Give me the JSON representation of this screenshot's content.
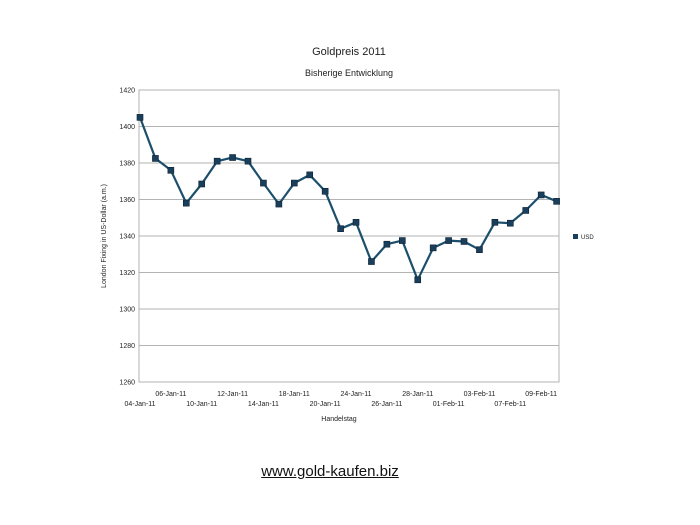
{
  "chart_data": {
    "type": "line",
    "title": "Goldpreis 2011",
    "subtitle": "Bisherige Entwicklung",
    "xlabel": "Handelstag",
    "ylabel": "London Fixing in US-Dollar (a.m.)",
    "ylim": [
      1260,
      1420
    ],
    "yticks": [
      1260,
      1280,
      1300,
      1320,
      1340,
      1360,
      1380,
      1400,
      1420
    ],
    "grid": true,
    "legend_position": "right",
    "x_tick_labels": [
      {
        "index": 0,
        "label": "04-Jan-11",
        "row": 2
      },
      {
        "index": 2,
        "label": "06-Jan-11",
        "row": 1
      },
      {
        "index": 4,
        "label": "10-Jan-11",
        "row": 2
      },
      {
        "index": 6,
        "label": "12-Jan-11",
        "row": 1
      },
      {
        "index": 8,
        "label": "14-Jan-11",
        "row": 2
      },
      {
        "index": 10,
        "label": "18-Jan-11",
        "row": 1
      },
      {
        "index": 12,
        "label": "20-Jan-11",
        "row": 2
      },
      {
        "index": 14,
        "label": "24-Jan-11",
        "row": 1
      },
      {
        "index": 16,
        "label": "26-Jan-11",
        "row": 2
      },
      {
        "index": 18,
        "label": "28-Jan-11",
        "row": 1
      },
      {
        "index": 20,
        "label": "01-Feb-11",
        "row": 2
      },
      {
        "index": 22,
        "label": "03-Feb-11",
        "row": 1
      },
      {
        "index": 24,
        "label": "07-Feb-11",
        "row": 2
      },
      {
        "index": 26,
        "label": "09-Feb-11",
        "row": 1
      }
    ],
    "series": [
      {
        "name": "USD",
        "color": "#1c4f6b",
        "marker_color": "#1a3f5c",
        "values": [
          1405,
          1382.5,
          1376,
          1358,
          1368.5,
          1381,
          1383,
          1381,
          1369,
          1357.5,
          1369,
          1373.5,
          1364.5,
          1344,
          1347.5,
          1326,
          1335.5,
          1337.5,
          1316,
          1333.5,
          1337.5,
          1337,
          1332.5,
          1347.5,
          1347,
          1354,
          1362.5,
          1359
        ]
      }
    ]
  },
  "footer": {
    "link_text": "www.gold-kaufen.biz"
  }
}
